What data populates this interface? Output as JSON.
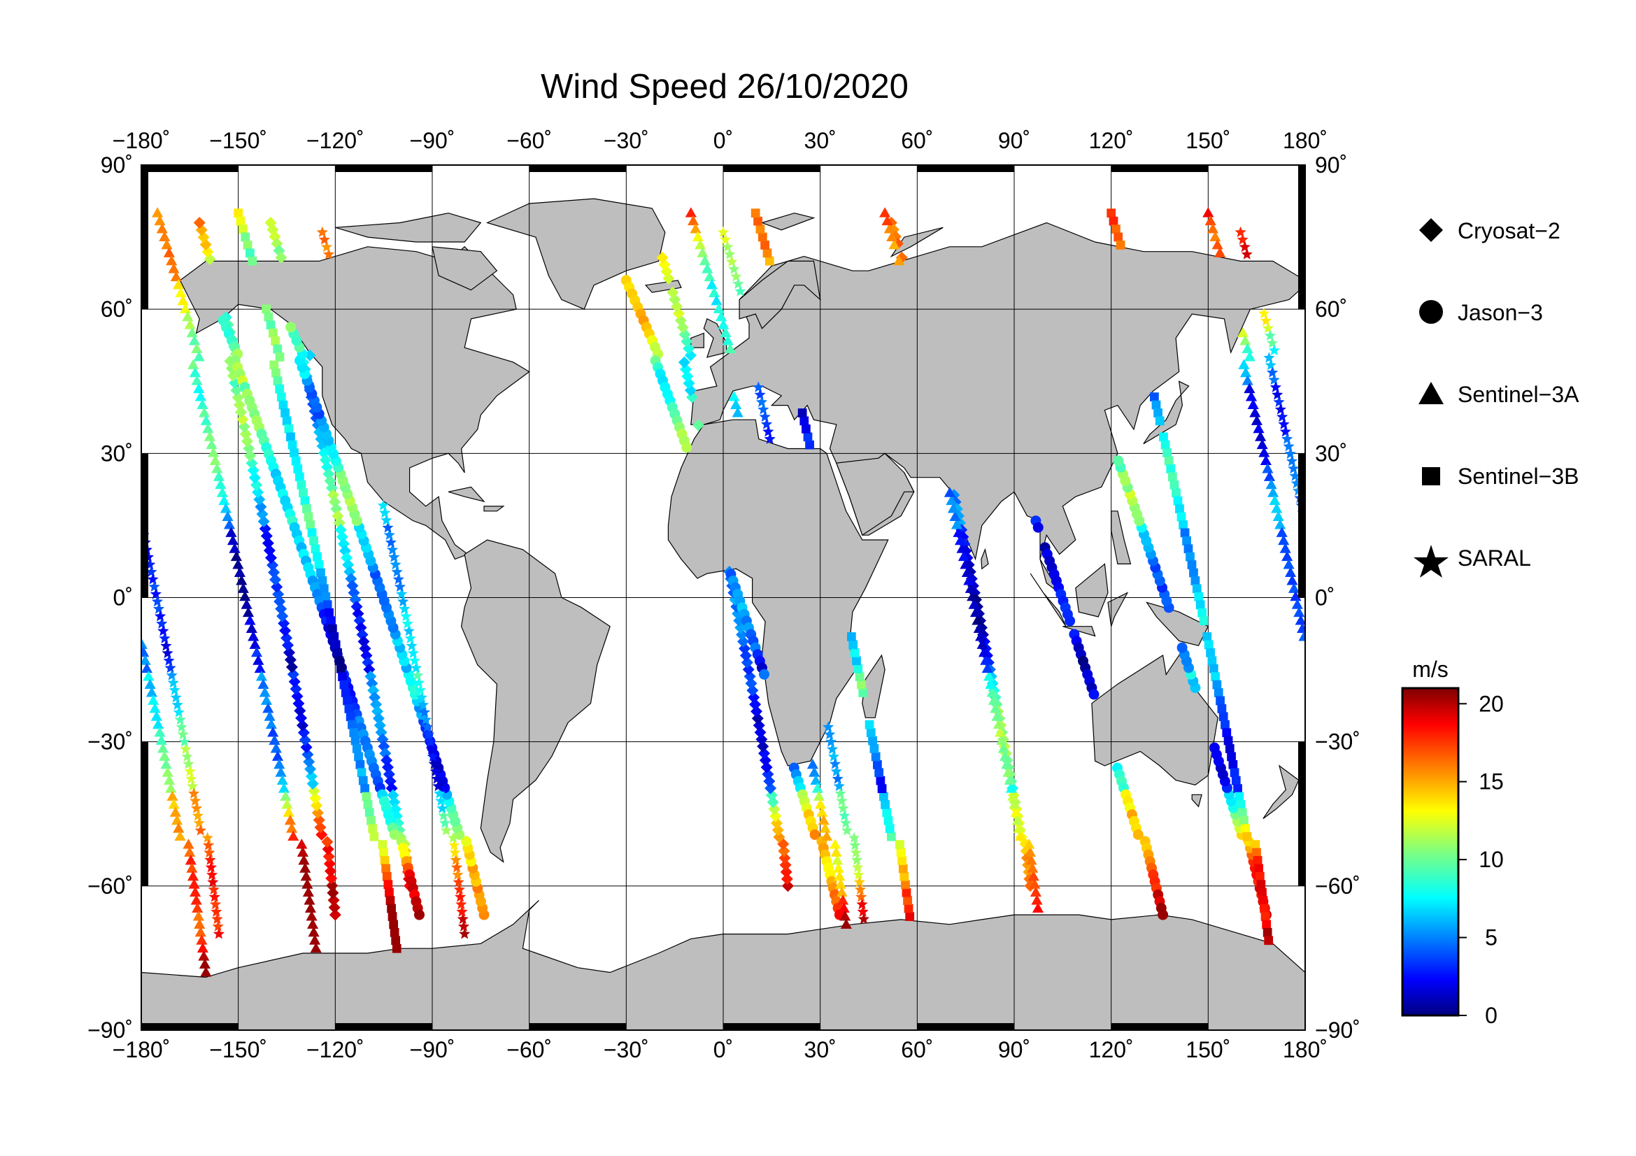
{
  "title": "Wind Speed 26/10/2020",
  "map": {
    "projection": "equirectangular",
    "lon_range": [
      -180,
      180
    ],
    "lat_range": [
      -90,
      90
    ],
    "grid_lon": [
      -150,
      -120,
      -90,
      -60,
      -30,
      0,
      30,
      60,
      90,
      120,
      150
    ],
    "grid_lat": [
      -60,
      -30,
      0,
      30,
      60
    ],
    "land_color": "#bebebe",
    "ocean_color": "#ffffff"
  },
  "axes": {
    "lon_ticks": [
      "−180˚",
      "−150˚",
      "−120˚",
      "−90˚",
      "−60˚",
      "−30˚",
      "0˚",
      "30˚",
      "60˚",
      "90˚",
      "120˚",
      "150˚",
      "180˚"
    ],
    "lat_ticks_left": [
      "90˚",
      "60˚",
      "30˚",
      "0˚",
      "−30˚",
      "−60˚",
      "−90˚"
    ],
    "lat_ticks_right": [
      "90˚",
      "60˚",
      "30˚",
      "0˚",
      "−30˚",
      "−60˚",
      "−90˚"
    ]
  },
  "legend": {
    "items": [
      {
        "label": "Cryosat−2",
        "marker": "diamond"
      },
      {
        "label": "Jason−3",
        "marker": "circle"
      },
      {
        "label": "Sentinel−3A",
        "marker": "triangle"
      },
      {
        "label": "Sentinel−3B",
        "marker": "square"
      },
      {
        "label": "SARAL",
        "marker": "star"
      }
    ]
  },
  "colorbar": {
    "unit": "m/s",
    "min": 0,
    "max": 21,
    "ticks": [
      "0",
      "5",
      "10",
      "15",
      "20"
    ],
    "colormap": "jet"
  },
  "chart_data": {
    "type": "scatter",
    "title": "Wind Speed 26/10/2020",
    "xlabel": "",
    "ylabel": "",
    "xlim": [
      -180,
      180
    ],
    "ylim": [
      -90,
      90
    ],
    "value_unit": "m/s",
    "series": [
      {
        "name": "Cryosat−2",
        "marker": "diamond",
        "tracks": [
          {
            "start": [
              52,
              78
            ],
            "end": [
              95,
              -60
            ],
            "dir": "desc"
          },
          {
            "start": [
              20,
              -60
            ],
            "end": [
              -22,
              78
            ],
            "dir": "asc"
          },
          {
            "start": [
              -140,
              78
            ],
            "end": [
              -97,
              -60
            ],
            "dir": "desc"
          },
          {
            "start": [
              -120,
              -66
            ],
            "end": [
              -162,
              78
            ],
            "dir": "asc"
          }
        ]
      },
      {
        "name": "Jason−3",
        "marker": "circle",
        "tracks": [
          {
            "start": [
              -30,
              66
            ],
            "end": [
              36,
              -66
            ],
            "dir": "desc"
          },
          {
            "start": [
              -74,
              -66
            ],
            "end": [
              -140,
              66
            ],
            "dir": "asc"
          },
          {
            "start": [
              70,
              66
            ],
            "end": [
              136,
              -66
            ],
            "dir": "desc"
          },
          {
            "start": [
              -160,
              66
            ],
            "end": [
              -94,
              -66
            ],
            "dir": "asc"
          },
          {
            "start": [
              168,
              -66
            ],
            "end": [
              102,
              66
            ],
            "dir": "asc"
          }
        ]
      },
      {
        "name": "Sentinel−3A",
        "marker": "triangle",
        "tracks": [
          {
            "start": [
              -10,
              80
            ],
            "end": [
              40,
              -78
            ],
            "dir": "desc"
          },
          {
            "start": [
              -175,
              80
            ],
            "end": [
              -125,
              -78
            ],
            "dir": "desc"
          },
          {
            "start": [
              100,
              -78
            ],
            "end": [
              50,
              80
            ],
            "dir": "asc"
          },
          {
            "start": [
              150,
              80
            ],
            "end": [
              -160,
              -78
            ],
            "dir": "desc"
          }
        ]
      },
      {
        "name": "Sentinel−3B",
        "marker": "square",
        "tracks": [
          {
            "start": [
              -150,
              80
            ],
            "end": [
              -100,
              -78
            ],
            "dir": "desc"
          },
          {
            "start": [
              60,
              -78
            ],
            "end": [
              10,
              80
            ],
            "dir": "asc"
          },
          {
            "start": [
              120,
              80
            ],
            "end": [
              170,
              -78
            ],
            "dir": "desc"
          }
        ]
      },
      {
        "name": "SARAL",
        "marker": "star",
        "tracks": [
          {
            "start": [
              0,
              76
            ],
            "end": [
              44,
              -70
            ],
            "dir": "desc"
          },
          {
            "start": [
              -80,
              -70
            ],
            "end": [
              -124,
              76
            ],
            "dir": "asc"
          },
          {
            "start": [
              160,
              76
            ],
            "end": [
              -156,
              -70
            ],
            "dir": "desc"
          }
        ]
      }
    ],
    "high_wind_regions": [
      {
        "lon": -160,
        "lat": -58,
        "speed": 20
      },
      {
        "lon": -95,
        "lat": -62,
        "speed": 19
      },
      {
        "lon": 170,
        "lat": -58,
        "speed": 20
      },
      {
        "lon": -20,
        "lat": 58,
        "speed": 18
      },
      {
        "lon": 75,
        "lat": -50,
        "speed": 17
      },
      {
        "lon": 30,
        "lat": -48,
        "speed": 16
      }
    ],
    "value_range": [
      0,
      21
    ]
  }
}
